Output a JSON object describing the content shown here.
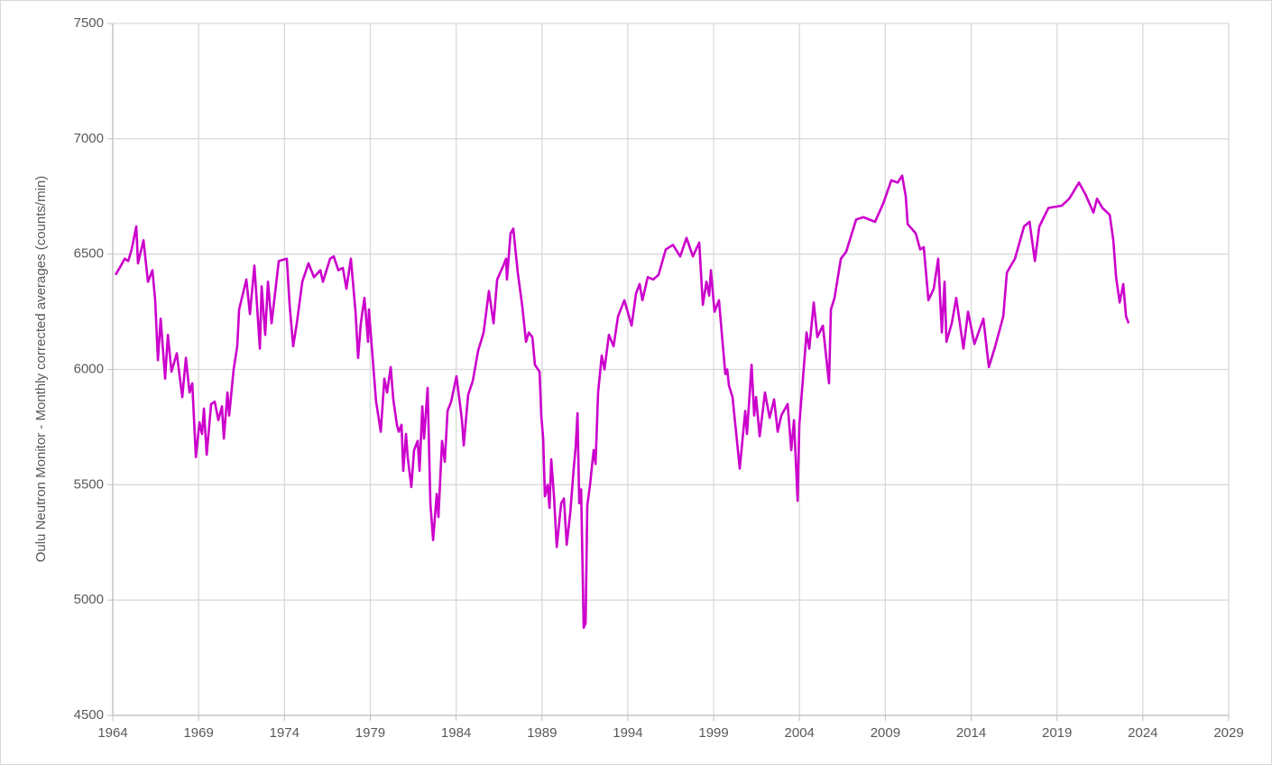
{
  "chart_data": {
    "type": "line",
    "y_label": "Oulu Neutron Monitor - Monthly corrected averages (counts/min)",
    "xlim": [
      1964,
      2029
    ],
    "xticks": [
      1964,
      1969,
      1974,
      1979,
      1984,
      1989,
      1994,
      1999,
      2004,
      2009,
      2014,
      2019,
      2024,
      2029
    ],
    "ylim": [
      4500,
      7500
    ],
    "yticks": [
      4500,
      5000,
      5500,
      6000,
      6500,
      7000,
      7500
    ],
    "grid": true,
    "series": [
      {
        "color": "#cc00cc",
        "x": [
          1964.16,
          1964.4,
          1964.7,
          1964.9,
          1965.1,
          1965.37,
          1965.47,
          1965.79,
          1966.05,
          1966.31,
          1966.47,
          1966.63,
          1966.79,
          1967.05,
          1967.21,
          1967.42,
          1967.73,
          1968.05,
          1968.26,
          1968.47,
          1968.63,
          1968.84,
          1969.05,
          1969.2,
          1969.31,
          1969.47,
          1969.73,
          1969.94,
          1970.15,
          1970.36,
          1970.47,
          1970.68,
          1970.78,
          1971.04,
          1971.25,
          1971.36,
          1971.78,
          1971.99,
          1972.25,
          1972.57,
          1972.67,
          1972.88,
          1973.04,
          1973.25,
          1973.67,
          1974.14,
          1974.3,
          1974.51,
          1974.72,
          1975.04,
          1975.4,
          1975.72,
          1976.09,
          1976.24,
          1976.66,
          1976.87,
          1977.14,
          1977.4,
          1977.61,
          1977.87,
          1978.14,
          1978.29,
          1978.45,
          1978.66,
          1978.87,
          1978.92,
          1979.19,
          1979.34,
          1979.61,
          1979.82,
          1979.98,
          1980.19,
          1980.34,
          1980.55,
          1980.66,
          1980.82,
          1980.92,
          1981.08,
          1981.18,
          1981.39,
          1981.55,
          1981.76,
          1981.87,
          1982.03,
          1982.13,
          1982.34,
          1982.5,
          1982.66,
          1982.87,
          1982.97,
          1983.18,
          1983.34,
          1983.5,
          1983.71,
          1984.02,
          1984.34,
          1984.44,
          1984.7,
          1984.97,
          1985.28,
          1985.6,
          1985.91,
          1986.18,
          1986.39,
          1986.75,
          1986.91,
          1986.96,
          1987.17,
          1987.33,
          1987.59,
          1987.86,
          1988.07,
          1988.23,
          1988.44,
          1988.59,
          1988.86,
          1988.96,
          1989.07,
          1989.17,
          1989.33,
          1989.44,
          1989.54,
          1989.7,
          1989.86,
          1990.12,
          1990.28,
          1990.44,
          1990.65,
          1990.86,
          1990.96,
          1991.07,
          1991.17,
          1991.28,
          1991.43,
          1991.54,
          1991.64,
          1991.8,
          1992.01,
          1992.12,
          1992.27,
          1992.48,
          1992.64,
          1992.9,
          1993.17,
          1993.43,
          1993.8,
          1994.22,
          1994.48,
          1994.69,
          1994.85,
          1995.16,
          1995.48,
          1995.79,
          1996.21,
          1996.63,
          1997.05,
          1997.42,
          1997.79,
          1998.16,
          1998.37,
          1998.58,
          1998.74,
          1998.84,
          1999.05,
          1999.31,
          1999.47,
          1999.68,
          1999.79,
          1999.89,
          2000.1,
          2000.52,
          2000.84,
          2000.94,
          2001.21,
          2001.36,
          2001.47,
          2001.68,
          2001.99,
          2002.26,
          2002.52,
          2002.73,
          2002.94,
          2003.31,
          2003.52,
          2003.68,
          2003.89,
          2003.99,
          2004.2,
          2004.41,
          2004.57,
          2004.83,
          2005.04,
          2005.36,
          2005.72,
          2005.83,
          2006.04,
          2006.41,
          2006.72,
          2007.3,
          2007.72,
          2008.4,
          2008.88,
          2009.35,
          2009.72,
          2009.98,
          2010.19,
          2010.3,
          2010.77,
          2011.03,
          2011.24,
          2011.51,
          2011.82,
          2012.08,
          2012.29,
          2012.45,
          2012.56,
          2012.87,
          2013.13,
          2013.55,
          2013.82,
          2014.19,
          2014.71,
          2015.03,
          2015.4,
          2015.87,
          2016.08,
          2016.55,
          2017.08,
          2017.4,
          2017.71,
          2017.97,
          2018.5,
          2019.28,
          2019.71,
          2020.28,
          2020.65,
          2021.12,
          2021.33,
          2021.65,
          2022.07,
          2022.28,
          2022.44,
          2022.65,
          2022.86,
          2023.02,
          2023.17
        ],
        "values": [
          6410,
          6440,
          6480,
          6470,
          6520,
          6620,
          6460,
          6560,
          6380,
          6430,
          6300,
          6040,
          6220,
          5960,
          6150,
          5990,
          6070,
          5880,
          6050,
          5900,
          5940,
          5620,
          5770,
          5720,
          5830,
          5630,
          5850,
          5860,
          5780,
          5840,
          5700,
          5900,
          5800,
          6000,
          6100,
          6260,
          6390,
          6240,
          6450,
          6090,
          6360,
          6150,
          6380,
          6200,
          6470,
          6480,
          6280,
          6100,
          6200,
          6380,
          6460,
          6400,
          6430,
          6380,
          6480,
          6490,
          6430,
          6440,
          6350,
          6480,
          6250,
          6050,
          6200,
          6310,
          6120,
          6260,
          6000,
          5860,
          5730,
          5960,
          5900,
          6010,
          5870,
          5760,
          5730,
          5760,
          5560,
          5720,
          5620,
          5490,
          5650,
          5690,
          5560,
          5840,
          5700,
          5920,
          5420,
          5260,
          5460,
          5360,
          5690,
          5600,
          5820,
          5860,
          5970,
          5780,
          5670,
          5890,
          5950,
          6080,
          6160,
          6340,
          6200,
          6390,
          6450,
          6480,
          6390,
          6590,
          6610,
          6420,
          6270,
          6120,
          6160,
          6140,
          6020,
          5990,
          5800,
          5700,
          5450,
          5500,
          5400,
          5610,
          5450,
          5230,
          5420,
          5440,
          5240,
          5380,
          5580,
          5660,
          5810,
          5420,
          5480,
          4880,
          4900,
          5410,
          5500,
          5650,
          5590,
          5900,
          6060,
          6000,
          6150,
          6100,
          6230,
          6300,
          6190,
          6330,
          6370,
          6300,
          6400,
          6390,
          6410,
          6520,
          6540,
          6490,
          6570,
          6490,
          6550,
          6280,
          6380,
          6320,
          6430,
          6250,
          6300,
          6160,
          5980,
          6000,
          5930,
          5880,
          5570,
          5820,
          5720,
          6020,
          5800,
          5880,
          5710,
          5900,
          5790,
          5870,
          5730,
          5800,
          5850,
          5650,
          5780,
          5430,
          5760,
          5960,
          6160,
          6090,
          6290,
          6140,
          6190,
          5940,
          6260,
          6310,
          6480,
          6510,
          6650,
          6660,
          6640,
          6720,
          6820,
          6810,
          6840,
          6750,
          6630,
          6590,
          6520,
          6530,
          6300,
          6350,
          6480,
          6160,
          6380,
          6120,
          6200,
          6310,
          6090,
          6250,
          6110,
          6220,
          6010,
          6100,
          6230,
          6420,
          6480,
          6620,
          6640,
          6470,
          6620,
          6700,
          6710,
          6740,
          6810,
          6760,
          6680,
          6740,
          6700,
          6670,
          6560,
          6400,
          6290,
          6370,
          6230,
          6200
        ]
      }
    ]
  }
}
